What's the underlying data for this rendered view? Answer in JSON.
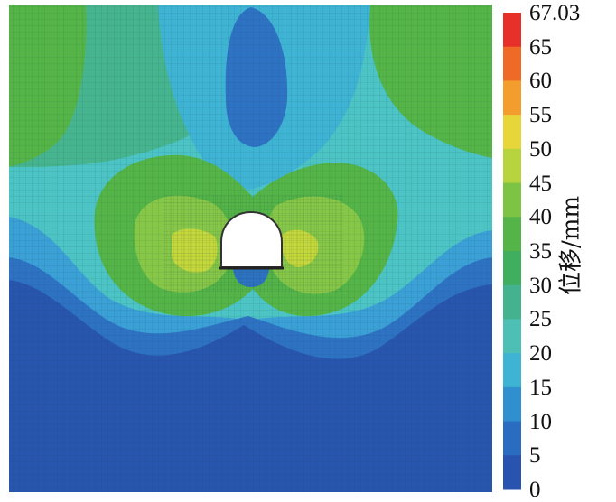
{
  "colorbar": {
    "unit_label": "位移/mm",
    "levels": [
      "67.03",
      "65",
      "60",
      "55",
      "50",
      "45",
      "40",
      "35",
      "30",
      "25",
      "20",
      "15",
      "10",
      "5",
      "0"
    ],
    "colors": [
      "#e8302a",
      "#ee6a26",
      "#f29d2e",
      "#e6d63a",
      "#b7d33d",
      "#7ec444",
      "#54b447",
      "#3fae5e",
      "#44b28f",
      "#4dbfb4",
      "#3fb3d4",
      "#2f8fcf",
      "#2a6cc0",
      "#2854b0"
    ]
  },
  "field": {
    "colors": {
      "deep_blue": "#2855ae",
      "mid_blue": "#2d72c3",
      "sky_blue": "#3aa0d6",
      "cyan": "#4cc3c4",
      "teal": "#46b48f",
      "green": "#4fb24c",
      "light_green": "#86c748",
      "yellow_green": "#c5d83c",
      "tunnel": "#ffffff"
    }
  }
}
